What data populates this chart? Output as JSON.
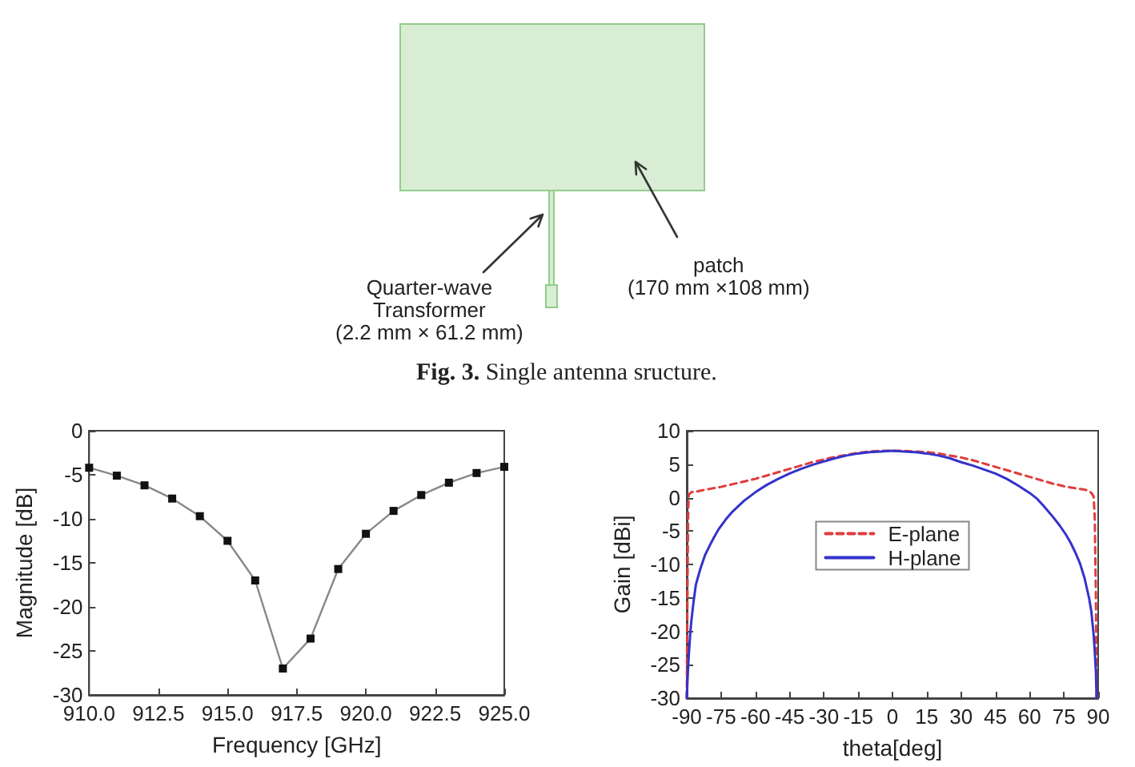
{
  "chart_data": [
    {
      "type": "other",
      "annotations": [
        "Quarter-wave\nTransformer\n(2.2 mm × 61.2 mm)",
        "patch\n(170 mm ×108 mm)",
        "Fig. 3. Single antenna sructure."
      ]
    },
    {
      "type": "line",
      "xlabel": "Frequency [GHz]",
      "ylabel": "Magnitude [dB]",
      "x": [
        910,
        911,
        912,
        913,
        914,
        915,
        916,
        917,
        918,
        919,
        920,
        921,
        922,
        923,
        924,
        925
      ],
      "values": [
        -4.2,
        -5.1,
        -6.2,
        -7.7,
        -9.7,
        -12.5,
        -17.0,
        -27.0,
        -23.6,
        -15.7,
        -11.7,
        -9.1,
        -7.3,
        -5.9,
        -4.8,
        -4.1
      ],
      "color": "#111111",
      "marker": "square",
      "line_style": "solid",
      "xlim": [
        910,
        925
      ],
      "xticks": [
        {
          "value": 910,
          "label": "910.0"
        },
        {
          "value": 912.5,
          "label": "912.5"
        },
        {
          "value": 915,
          "label": "915.0"
        },
        {
          "value": 917.5,
          "label": "917.5"
        },
        {
          "value": 920,
          "label": "920.0"
        },
        {
          "value": 922.5,
          "label": "922.5"
        },
        {
          "value": 925,
          "label": "925.0"
        }
      ],
      "ylim": [
        -30,
        0
      ],
      "yticks": [
        -30,
        -25,
        -20,
        -15,
        -10,
        -5,
        0
      ],
      "grid": false,
      "legend": false
    },
    {
      "type": "line",
      "xlabel": "theta[deg]",
      "ylabel": "Gain [dBi]",
      "marker": "none",
      "legend": "center",
      "grid": false,
      "xlim": [
        -90,
        90
      ],
      "xticks": [
        -90,
        -75,
        -60,
        -45,
        -30,
        -15,
        0,
        15,
        30,
        45,
        60,
        75,
        90
      ],
      "ylim": [
        -30,
        10
      ],
      "yticks": [
        -30,
        -25,
        -20,
        -15,
        -10,
        -5,
        0,
        5,
        10
      ],
      "series": [
        {
          "name": "E-plane",
          "color": "#e03c3c",
          "line_style": "dashed",
          "x": [
            -90,
            -89.8,
            -89.6,
            -89.4,
            -89.2,
            -89,
            -88,
            -86,
            -83,
            -80,
            -75,
            -70,
            -65,
            -60,
            -55,
            -50,
            -45,
            -40,
            -35,
            -30,
            -25,
            -20,
            -15,
            -10,
            -5,
            0,
            5,
            10,
            15,
            20,
            25,
            30,
            35,
            40,
            45,
            50,
            55,
            60,
            65,
            70,
            75,
            80,
            84,
            86,
            87,
            88,
            88.5,
            89,
            89.3
          ],
          "values": [
            -30,
            -20,
            -10,
            -3,
            0,
            0.5,
            0.8,
            0.9,
            1.1,
            1.3,
            1.6,
            2.0,
            2.4,
            2.8,
            3.3,
            3.8,
            4.3,
            4.8,
            5.3,
            5.7,
            6.1,
            6.4,
            6.7,
            6.9,
            7.0,
            7.0,
            7.0,
            6.9,
            6.8,
            6.6,
            6.3,
            6.0,
            5.6,
            5.1,
            4.6,
            4.1,
            3.6,
            3.1,
            2.6,
            2.1,
            1.7,
            1.4,
            1.2,
            1.0,
            0.7,
            0.2,
            -3,
            -15,
            -30
          ]
        },
        {
          "name": "H-plane",
          "color": "#3333cc",
          "line_style": "solid",
          "x": [
            -90,
            -89.5,
            -89,
            -88.5,
            -88,
            -87,
            -86,
            -85,
            -84,
            -82,
            -80,
            -78,
            -76,
            -73,
            -70,
            -65,
            -60,
            -55,
            -50,
            -45,
            -40,
            -35,
            -30,
            -25,
            -20,
            -15,
            -10,
            -5,
            0,
            5,
            10,
            15,
            20,
            25,
            30,
            35,
            40,
            45,
            50,
            55,
            60,
            63,
            66,
            70,
            73,
            76,
            78,
            80,
            82,
            84,
            85,
            86,
            87,
            88,
            88.5,
            89,
            89.3
          ],
          "values": [
            -30,
            -26,
            -23,
            -20.5,
            -18.5,
            -15.5,
            -13,
            -11.8,
            -10.6,
            -8.6,
            -7.2,
            -5.9,
            -4.7,
            -3.3,
            -2.1,
            -0.5,
            0.8,
            1.9,
            2.8,
            3.6,
            4.3,
            4.9,
            5.4,
            5.9,
            6.3,
            6.6,
            6.8,
            6.9,
            7.0,
            6.9,
            6.8,
            6.6,
            6.3,
            5.9,
            5.3,
            4.8,
            4.2,
            3.6,
            2.8,
            1.8,
            0.7,
            -0.1,
            -1.2,
            -2.8,
            -4.1,
            -5.6,
            -6.8,
            -8.2,
            -9.8,
            -12,
            -13.5,
            -15,
            -17,
            -20.5,
            -23,
            -26,
            -30
          ]
        }
      ]
    }
  ]
}
